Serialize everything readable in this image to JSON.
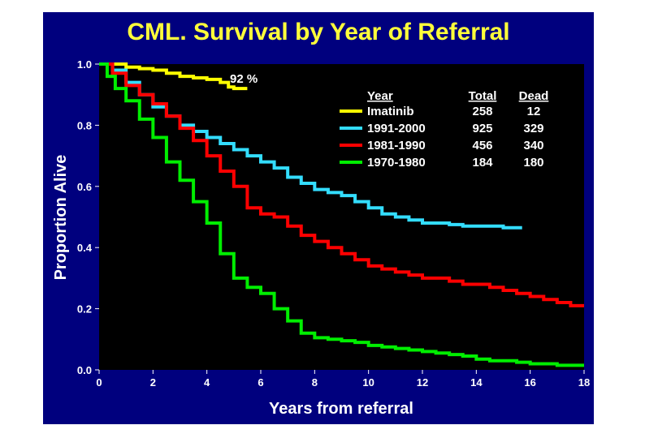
{
  "chart_data": {
    "type": "line",
    "title": "CML. Survival by Year of Referral",
    "xlabel": "Years from referral",
    "ylabel": "Proportion Alive",
    "xlim": [
      0,
      18
    ],
    "ylim": [
      0.0,
      1.0
    ],
    "xticks": [
      "0",
      "2",
      "4",
      "6",
      "8",
      "10",
      "12",
      "14",
      "16",
      "18"
    ],
    "yticks": [
      "0.0",
      "0.2",
      "0.4",
      "0.6",
      "0.8",
      "1.0"
    ],
    "annotation": "92 %",
    "legend_headers": {
      "year": "Year",
      "total": "Total",
      "dead": "Dead"
    },
    "colors": {
      "background": "#00007e",
      "plot": "#000000",
      "title": "#ffff3a",
      "text": "#ffffff"
    },
    "series": [
      {
        "name": "Imatinib",
        "total": "258",
        "dead": "12",
        "color": "#ffff00",
        "x": [
          0,
          0.5,
          1.0,
          1.5,
          2.0,
          2.5,
          3.0,
          3.5,
          4.0,
          4.5,
          4.8,
          5.0,
          5.5
        ],
        "y": [
          1.0,
          1.0,
          0.99,
          0.985,
          0.98,
          0.97,
          0.96,
          0.955,
          0.95,
          0.94,
          0.925,
          0.92,
          0.92
        ]
      },
      {
        "name": "1991-2000",
        "total": "925",
        "dead": "329",
        "color": "#33ddff",
        "x": [
          0,
          0.5,
          1.0,
          1.5,
          2.0,
          2.5,
          3.0,
          3.5,
          4.0,
          4.5,
          5.0,
          5.5,
          6.0,
          6.5,
          7.0,
          7.5,
          8.0,
          8.5,
          9.0,
          9.5,
          10.0,
          10.5,
          11.0,
          11.5,
          12.0,
          12.5,
          13.0,
          13.5,
          14.0,
          14.5,
          15.0,
          15.5,
          15.7
        ],
        "y": [
          1.0,
          0.98,
          0.94,
          0.9,
          0.86,
          0.83,
          0.8,
          0.78,
          0.76,
          0.74,
          0.72,
          0.7,
          0.68,
          0.66,
          0.63,
          0.61,
          0.59,
          0.58,
          0.57,
          0.55,
          0.53,
          0.51,
          0.5,
          0.49,
          0.48,
          0.48,
          0.475,
          0.47,
          0.47,
          0.47,
          0.465,
          0.465,
          0.465
        ]
      },
      {
        "name": "1981-1990",
        "total": "456",
        "dead": "340",
        "color": "#ff0000",
        "x": [
          0,
          0.5,
          1.0,
          1.5,
          2.0,
          2.5,
          3.0,
          3.5,
          4.0,
          4.5,
          5.0,
          5.5,
          6.0,
          6.5,
          7.0,
          7.5,
          8.0,
          8.5,
          9.0,
          9.5,
          10.0,
          10.5,
          11.0,
          11.5,
          12.0,
          12.5,
          13.0,
          13.5,
          14.0,
          14.5,
          15.0,
          15.5,
          16.0,
          16.5,
          17.0,
          17.5,
          18.0
        ],
        "y": [
          1.0,
          0.97,
          0.93,
          0.9,
          0.87,
          0.83,
          0.79,
          0.75,
          0.7,
          0.65,
          0.6,
          0.53,
          0.51,
          0.5,
          0.47,
          0.44,
          0.42,
          0.4,
          0.38,
          0.36,
          0.34,
          0.33,
          0.32,
          0.31,
          0.3,
          0.3,
          0.29,
          0.28,
          0.28,
          0.27,
          0.26,
          0.25,
          0.24,
          0.23,
          0.22,
          0.21,
          0.21
        ]
      },
      {
        "name": "1970-1980",
        "total": "184",
        "dead": "180",
        "color": "#00ee00",
        "x": [
          0,
          0.3,
          0.6,
          1.0,
          1.5,
          2.0,
          2.5,
          3.0,
          3.5,
          4.0,
          4.5,
          5.0,
          5.5,
          6.0,
          6.5,
          7.0,
          7.5,
          8.0,
          8.5,
          9.0,
          9.5,
          10.0,
          10.5,
          11.0,
          11.5,
          12.0,
          12.5,
          13.0,
          13.5,
          14.0,
          14.5,
          15.0,
          15.5,
          16.0,
          16.5,
          17.0,
          17.5,
          18.0
        ],
        "y": [
          1.0,
          0.96,
          0.92,
          0.88,
          0.82,
          0.76,
          0.68,
          0.62,
          0.55,
          0.48,
          0.38,
          0.3,
          0.27,
          0.25,
          0.2,
          0.16,
          0.12,
          0.105,
          0.1,
          0.095,
          0.09,
          0.08,
          0.075,
          0.07,
          0.065,
          0.06,
          0.055,
          0.05,
          0.045,
          0.035,
          0.03,
          0.03,
          0.025,
          0.02,
          0.02,
          0.015,
          0.015,
          0.015
        ]
      }
    ]
  }
}
